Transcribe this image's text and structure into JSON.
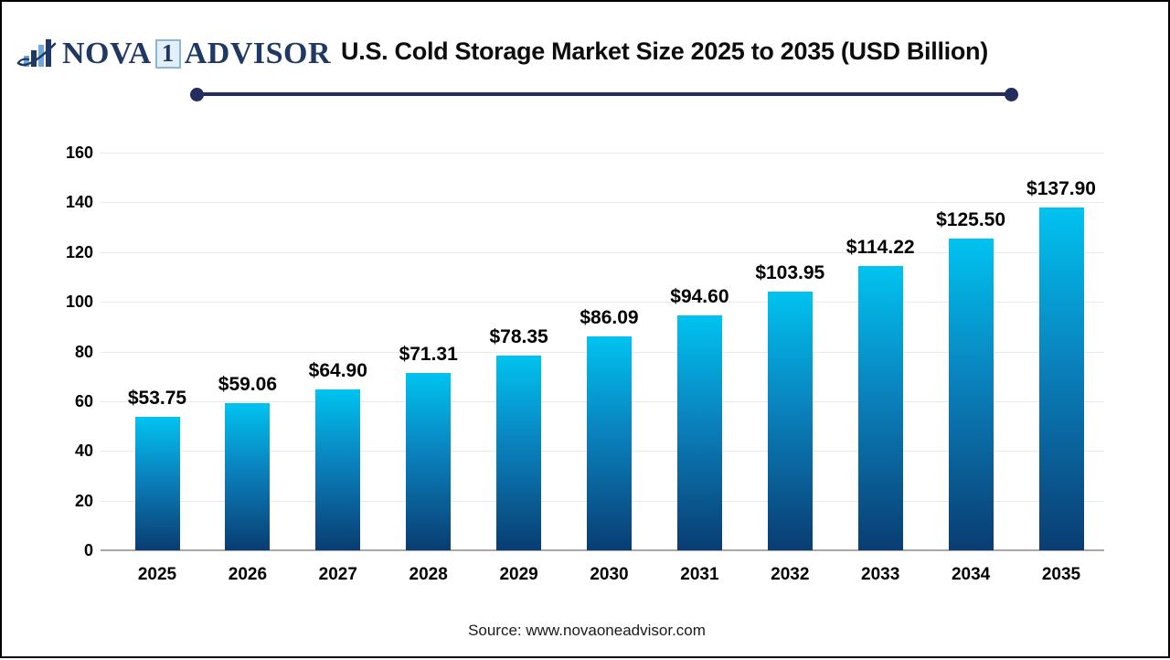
{
  "header": {
    "logo": {
      "nova": "NOVA",
      "one": "1",
      "advisor": "ADVISOR",
      "navy": "#1f3864",
      "light_blue": "#6fa8dc"
    },
    "underline_color": "#232e5f"
  },
  "chart_data": {
    "type": "bar",
    "title": "U.S. Cold Storage Market Size 2025 to 2035 (USD Billion)",
    "categories": [
      "2025",
      "2026",
      "2027",
      "2028",
      "2029",
      "2030",
      "2031",
      "2032",
      "2033",
      "2034",
      "2035"
    ],
    "values": [
      53.75,
      59.06,
      64.9,
      71.31,
      78.35,
      86.09,
      94.6,
      103.95,
      114.22,
      125.5,
      137.9
    ],
    "value_labels": [
      "$53.75",
      "$59.06",
      "$64.90",
      "$71.31",
      "$78.35",
      "$86.09",
      "$94.60",
      "$103.95",
      "$114.22",
      "$125.50",
      "$137.90"
    ],
    "xlabel": "",
    "ylabel": "",
    "ylim": [
      0,
      160
    ],
    "yticks": [
      0,
      20,
      40,
      60,
      80,
      100,
      120,
      140,
      160
    ],
    "grid": true,
    "legend": "none",
    "colors": {
      "bar_gradient_top": "#00c3f0",
      "bar_gradient_bottom": "#093d72",
      "gridline": "#e9e9e9",
      "axis_line": "#a8a8a8",
      "label": "#000000"
    }
  },
  "footer": {
    "source": "Source: www.novaoneadvisor.com"
  }
}
